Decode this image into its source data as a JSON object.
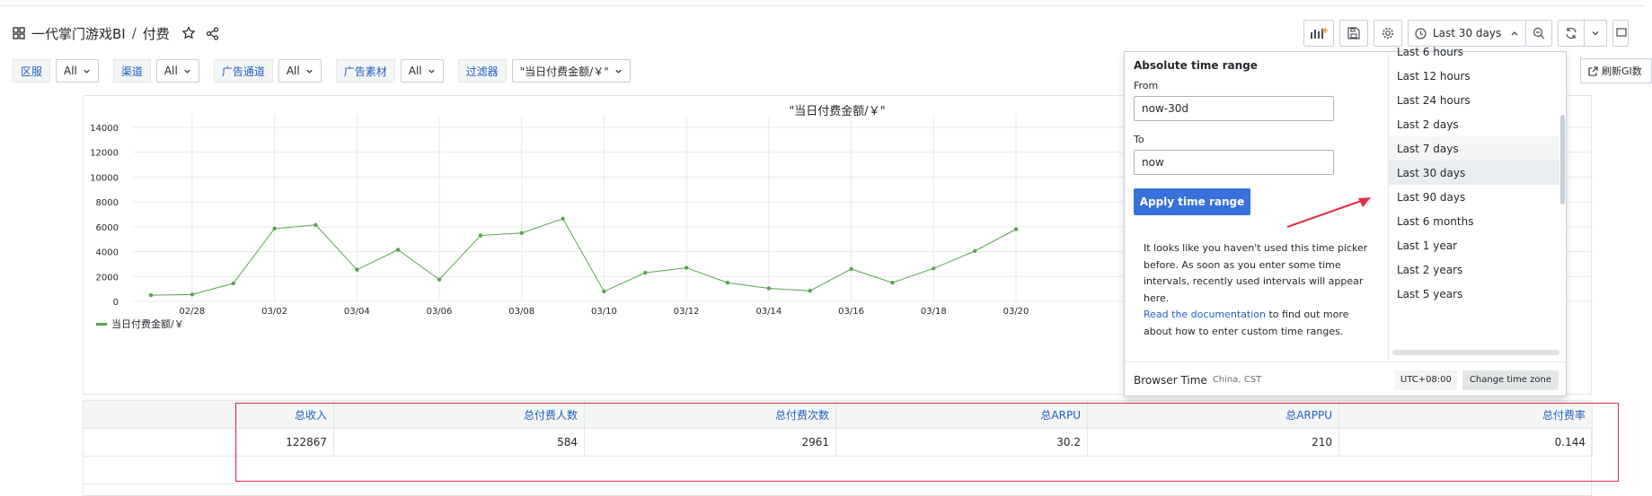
{
  "header": {
    "title": "一代掌门游戏BI",
    "separator": "/",
    "subtitle": "付费"
  },
  "toolbar": {
    "time_range_label": "Last 30 days"
  },
  "variables": [
    {
      "label": "区服",
      "value": "All"
    },
    {
      "label": "渠道",
      "value": "All"
    },
    {
      "label": "广告通道",
      "value": "All"
    },
    {
      "label": "广告素材",
      "value": "All"
    },
    {
      "label": "过滤器",
      "value": "\"当日付费金额/￥\""
    }
  ],
  "refresh_link_label": "刷新GI数",
  "chart_data": {
    "type": "line",
    "title": "\"当日付费金额/￥\"",
    "color": "#56a64b",
    "ylim": [
      0,
      14000
    ],
    "yticks": [
      "0",
      "2000",
      "4000",
      "6000",
      "8000",
      "10000",
      "12000",
      "14000"
    ],
    "xtick_labels": [
      "02/28",
      "03/02",
      "03/04",
      "03/06",
      "03/08",
      "03/10",
      "03/12",
      "03/14",
      "03/16",
      "03/18",
      "03/20"
    ],
    "x": [
      "02/27",
      "02/28",
      "03/01",
      "03/02",
      "03/03",
      "03/04",
      "03/05",
      "03/06",
      "03/07",
      "03/08",
      "03/09",
      "03/10",
      "03/11",
      "03/12",
      "03/13",
      "03/14",
      "03/15",
      "03/16",
      "03/17",
      "03/18",
      "03/19",
      "03/20"
    ],
    "series": [
      {
        "name": "当日付费金额/￥",
        "values": [
          500,
          550,
          1450,
          5850,
          6150,
          2550,
          4150,
          1750,
          5300,
          5500,
          6650,
          800,
          2300,
          2700,
          1500,
          1050,
          850,
          2600,
          1500,
          2650,
          4050,
          5800
        ]
      }
    ],
    "legend_position": "bottom-left"
  },
  "table": {
    "headers": [
      "",
      "总收入",
      "总付费人数",
      "总付费次数",
      "总ARPU",
      "总ARPPU",
      "总付费率"
    ],
    "rows": [
      [
        "",
        "122867",
        "584",
        "2961",
        "30.2",
        "210",
        "0.144"
      ]
    ]
  },
  "picker": {
    "title": "Absolute time range",
    "from_label": "From",
    "from_value": "now-30d",
    "to_label": "To",
    "to_value": "now",
    "apply_label": "Apply time range",
    "note_text": "It looks like you haven't used this time picker before. As soon as you enter some time intervals, recently used intervals will appear here.",
    "note_link": "Read the documentation",
    "note_tail": " to find out more about how to enter custom time ranges.",
    "ranges": [
      "Last 6 hours",
      "Last 12 hours",
      "Last 24 hours",
      "Last 2 days",
      "Last 7 days",
      "Last 30 days",
      "Last 90 days",
      "Last 6 months",
      "Last 1 year",
      "Last 2 years",
      "Last 5 years"
    ],
    "selected_range": "Last 30 days",
    "hovered_range": "Last 7 days",
    "browser_time_label": "Browser Time",
    "timezone_name": "China, CST",
    "utc_offset": "UTC+08:00",
    "change_tz_label": "Change time zone"
  },
  "colors": {
    "accent": "#3871dc",
    "link": "#1f60c4",
    "series": "#56a64b",
    "annotation_red": "#e02f44"
  }
}
